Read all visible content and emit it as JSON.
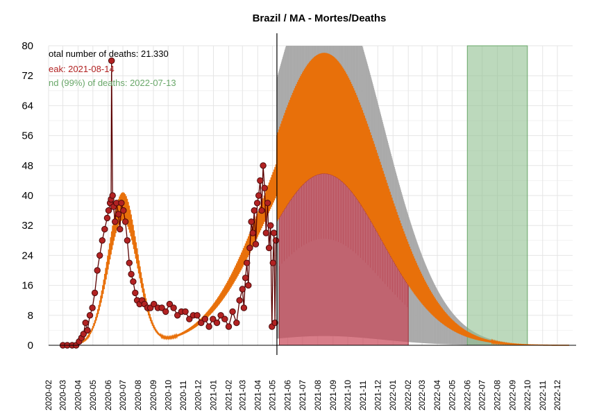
{
  "chart_data": {
    "type": "line",
    "title": "Brazil / MA - Mortes/Deaths",
    "xlabel": "",
    "ylabel": "",
    "ylim": [
      0,
      80
    ],
    "xlim": [
      "2020-02-01",
      "2023-01-01"
    ],
    "grid": true,
    "yticks": [
      0,
      8,
      16,
      24,
      32,
      40,
      48,
      56,
      64,
      72,
      80
    ],
    "xticks": [
      "2020-02",
      "2020-03",
      "2020-04",
      "2020-05",
      "2020-06",
      "2020-07",
      "2020-08",
      "2020-09",
      "2020-10",
      "2020-11",
      "2020-12",
      "2021-01",
      "2021-02",
      "2021-03",
      "2021-04",
      "2021-05",
      "2021-06",
      "2021-07",
      "2021-08",
      "2021-09",
      "2021-10",
      "2021-11",
      "2021-12",
      "2022-01",
      "2022-02",
      "2022-03",
      "2022-04",
      "2022-05",
      "2022-06",
      "2022-07",
      "2022-08",
      "2022-09",
      "2022-10",
      "2022-11",
      "2022-12"
    ],
    "annotations": {
      "total": "otal number of deaths: 21.330",
      "peak": "eak: 2021-08-14",
      "end": "nd (99%) of deaths: 2022-07-13"
    },
    "colors": {
      "observed": "#b22222",
      "observed_line": "#5a0000",
      "fit": "#e8700a",
      "uncertainty": "#aaaaaa",
      "forecast_band": "#c94a5a",
      "end_band": "#8fbf8f",
      "end_text": "#6aa86a",
      "peak_text": "#b22222",
      "grid": "#e5e5e5"
    },
    "vertical_line": "2021-05-10",
    "end_window": [
      "2022-06-01",
      "2022-10-01"
    ],
    "forecast_window": [
      "2021-05-15",
      "2022-02-01"
    ],
    "series": [
      {
        "name": "",
        "kind": "observed_daily",
        "x": [
          "2020-03-01",
          "2020-03-10",
          "2020-03-20",
          "2020-03-28",
          "2020-04-03",
          "2020-04-08",
          "2020-04-12",
          "2020-04-16",
          "2020-04-20",
          "2020-04-25",
          "2020-04-30",
          "2020-05-05",
          "2020-05-10",
          "2020-05-15",
          "2020-05-20",
          "2020-05-25",
          "2020-05-30",
          "2020-06-02",
          "2020-06-05",
          "2020-06-07",
          "2020-06-08",
          "2020-06-10",
          "2020-06-12",
          "2020-06-15",
          "2020-06-18",
          "2020-06-22",
          "2020-06-25",
          "2020-06-28",
          "2020-07-02",
          "2020-07-06",
          "2020-07-10",
          "2020-07-14",
          "2020-07-18",
          "2020-07-22",
          "2020-07-26",
          "2020-07-30",
          "2020-08-04",
          "2020-08-09",
          "2020-08-14",
          "2020-08-20",
          "2020-08-26",
          "2020-09-02",
          "2020-09-10",
          "2020-09-18",
          "2020-09-26",
          "2020-10-04",
          "2020-10-12",
          "2020-10-20",
          "2020-10-28",
          "2020-11-05",
          "2020-11-13",
          "2020-11-21",
          "2020-11-29",
          "2020-12-07",
          "2020-12-15",
          "2020-12-23",
          "2020-12-31",
          "2021-01-08",
          "2021-01-16",
          "2021-01-24",
          "2021-02-01",
          "2021-02-09",
          "2021-02-17",
          "2021-02-23",
          "2021-03-01",
          "2021-03-04",
          "2021-03-07",
          "2021-03-10",
          "2021-03-13",
          "2021-03-16",
          "2021-03-19",
          "2021-03-22",
          "2021-03-25",
          "2021-03-28",
          "2021-03-31",
          "2021-04-03",
          "2021-04-06",
          "2021-04-09",
          "2021-04-12",
          "2021-04-15",
          "2021-04-18",
          "2021-04-21",
          "2021-04-24",
          "2021-04-27",
          "2021-04-30",
          "2021-05-02",
          "2021-05-04",
          "2021-05-06",
          "2021-05-08"
        ],
        "values": [
          0,
          0,
          0,
          0,
          1,
          2,
          3,
          6,
          4,
          8,
          10,
          14,
          20,
          24,
          28,
          31,
          34,
          36,
          38,
          39,
          76,
          40,
          37,
          33,
          38,
          35,
          31,
          38,
          36,
          33,
          28,
          22,
          19,
          17,
          14,
          12,
          11,
          12,
          11,
          10,
          10,
          11,
          10,
          10,
          9,
          11,
          10,
          8,
          9,
          9,
          7,
          8,
          8,
          6,
          7,
          5,
          7,
          6,
          8,
          7,
          5,
          9,
          6,
          12,
          15,
          10,
          18,
          22,
          16,
          26,
          33,
          30,
          36,
          27,
          38,
          40,
          44,
          36,
          48,
          42,
          30,
          38,
          26,
          32,
          5,
          22,
          30,
          6,
          28
        ]
      },
      {
        "name": "",
        "kind": "fit_peak1",
        "mean_date": "2020-07-01",
        "sd_days": 30,
        "peak_value": 37
      },
      {
        "name": "",
        "kind": "fit_peak2",
        "mean_date": "2021-08-14",
        "sd_days": 118,
        "peak_value": 62,
        "amplitude_ratio": 0.26,
        "uncertainty_ratio": 1.6
      }
    ]
  }
}
